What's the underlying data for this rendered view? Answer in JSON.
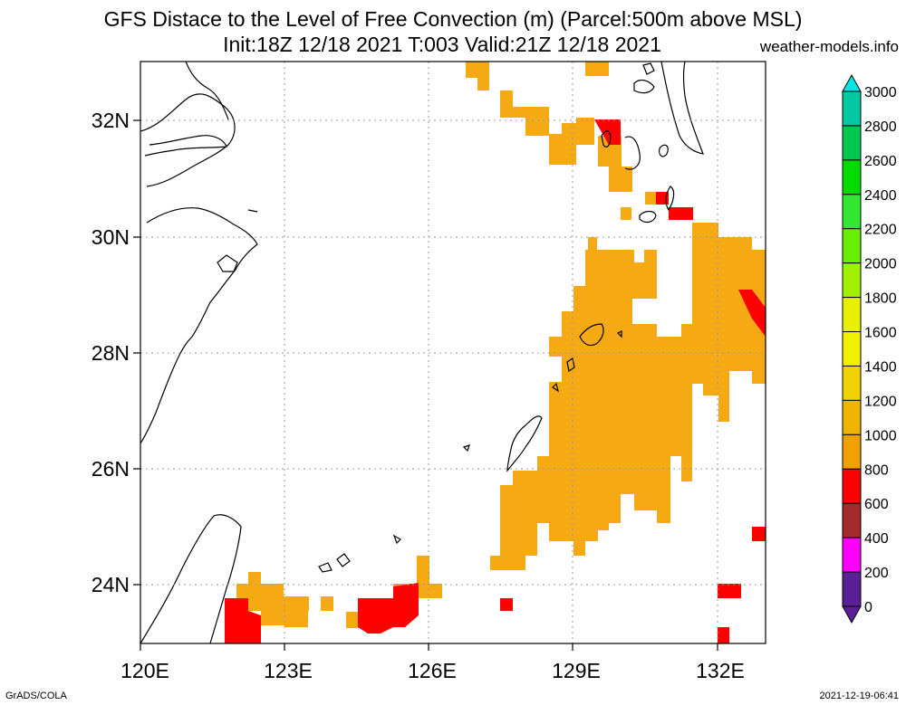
{
  "title_line1": "GFS Distace to the Level of Free Convection (m) (Parcel:500m above MSL)",
  "title_line2": "Init:18Z 12/18 2021 T:003 Valid:21Z 12/18 2021",
  "credit": "weather-models.info",
  "footer_left": "GrADS/COLA",
  "footer_right": "2021-12-19-06:41",
  "lat_labels": [
    "32N",
    "30N",
    "28N",
    "26N",
    "24N"
  ],
  "lon_labels": [
    "120E",
    "123E",
    "126E",
    "129E",
    "132E"
  ],
  "colorbar": {
    "labels": [
      "3000",
      "2800",
      "2600",
      "2400",
      "2200",
      "2000",
      "1800",
      "1600",
      "1400",
      "1200",
      "1000",
      "800",
      "600",
      "400",
      "200",
      "0"
    ],
    "colors": [
      "#00e6e6",
      "#00c8a0",
      "#00c850",
      "#00dc00",
      "#32e632",
      "#64f000",
      "#a0f000",
      "#e6f000",
      "#f0f000",
      "#f0d200",
      "#f0b400",
      "#f0a000",
      "#ff0000",
      "#a52a2a",
      "#ff00ff",
      "#5a1e96"
    ]
  },
  "colors": {
    "orange_fill": "#f5aa14",
    "red_fill": "#ff0000",
    "grid_line": "#999999"
  }
}
